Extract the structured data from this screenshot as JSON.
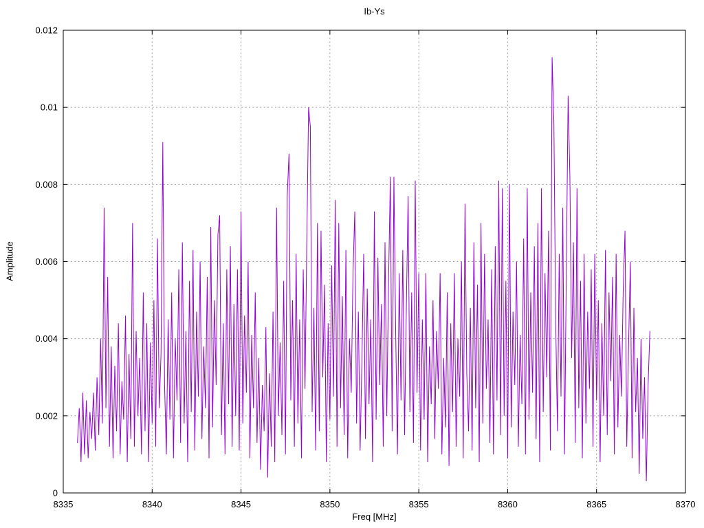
{
  "chart_data": {
    "type": "line",
    "title": "Ib-Ys",
    "xlabel": "Freq [MHz]",
    "ylabel": "Amplitude",
    "xlim": [
      8335,
      8370
    ],
    "ylim": [
      0,
      0.012
    ],
    "x_ticks": [
      8335,
      8340,
      8345,
      8350,
      8355,
      8360,
      8365,
      8370
    ],
    "x_tick_labels": [
      "8335",
      "8340",
      "8345",
      "8350",
      "8355",
      "8360",
      "8365",
      "8370"
    ],
    "y_ticks": [
      0,
      0.002,
      0.004,
      0.006,
      0.008,
      0.01,
      0.012
    ],
    "y_tick_labels": [
      "0",
      "0.002",
      "0.004",
      "0.006",
      "0.008",
      "0.01",
      "0.012"
    ],
    "grid": true,
    "legend": "none",
    "line_color": "#9400d3",
    "grid_color": "#9b9b9b",
    "border_color": "#000000",
    "notable_peaks": [
      {
        "x": 8337.3,
        "y": 0.0074
      },
      {
        "x": 8340.6,
        "y": 0.0091
      },
      {
        "x": 8347.7,
        "y": 0.0088
      },
      {
        "x": 8348.8,
        "y": 0.01
      },
      {
        "x": 8353.5,
        "y": 0.0082
      },
      {
        "x": 8354.8,
        "y": 0.0081
      },
      {
        "x": 8359.5,
        "y": 0.0081
      },
      {
        "x": 8362.5,
        "y": 0.0113
      },
      {
        "x": 8363.4,
        "y": 0.0103
      }
    ],
    "series": [
      {
        "name": "Ib-Ys",
        "x_start": 8335.8,
        "x_step": 0.1,
        "y_unit": 0.0001,
        "values": [
          13,
          22,
          8,
          26,
          10,
          24,
          9,
          21,
          14,
          26,
          11,
          30,
          15,
          40,
          18,
          74,
          22,
          56,
          12,
          38,
          9,
          33,
          16,
          44,
          10,
          29,
          19,
          46,
          8,
          36,
          14,
          70,
          12,
          42,
          20,
          35,
          10,
          52,
          16,
          44,
          8,
          39,
          18,
          50,
          12,
          66,
          22,
          36,
          91,
          28,
          10,
          45,
          19,
          52,
          9,
          40,
          24,
          58,
          13,
          65,
          18,
          42,
          8,
          55,
          21,
          63,
          11,
          47,
          25,
          60,
          14,
          38,
          22,
          56,
          9,
          69,
          17,
          50,
          28,
          67,
          72,
          15,
          44,
          10,
          58,
          23,
          64,
          12,
          49,
          20,
          58,
          11,
          73,
          18,
          46,
          26,
          60,
          9,
          41,
          22,
          52,
          13,
          35,
          6,
          28,
          16,
          43,
          4,
          31,
          12,
          47,
          8,
          74,
          20,
          39,
          15,
          55,
          10,
          77,
          88,
          24,
          50,
          12,
          62,
          18,
          45,
          9,
          58,
          27,
          65,
          100,
          95,
          21,
          48,
          11,
          70,
          16,
          68,
          30,
          54,
          8,
          44,
          19,
          59,
          25,
          76,
          12,
          70,
          22,
          51,
          15,
          63,
          9,
          40,
          26,
          57,
          73,
          18,
          47,
          11,
          34,
          62,
          14,
          53,
          23,
          45,
          8,
          73,
          19,
          61,
          28,
          49,
          12,
          65,
          20,
          55,
          82,
          16,
          82,
          42,
          10,
          57,
          24,
          63,
          15,
          48,
          77,
          21,
          52,
          13,
          81,
          26,
          57,
          11,
          45,
          19,
          57,
          8,
          38,
          23,
          50,
          14,
          42,
          27,
          57,
          10,
          35,
          17,
          52,
          7,
          44,
          21,
          57,
          12,
          40,
          25,
          60,
          9,
          75,
          31,
          16,
          48,
          11,
          65,
          22,
          54,
          8,
          70,
          18,
          62,
          27,
          45,
          13,
          58,
          10,
          64,
          24,
          81,
          15,
          79,
          20,
          55,
          9,
          80,
          17,
          47,
          28,
          60,
          12,
          41,
          23,
          66,
          10,
          79,
          19,
          52,
          26,
          64,
          14,
          70,
          8,
          79,
          21,
          57,
          30,
          68,
          11,
          113,
          96,
          45,
          16,
          62,
          25,
          74,
          10,
          58,
          103,
          82,
          35,
          65,
          13,
          79,
          22,
          55,
          9,
          62,
          18,
          47,
          27,
          58,
          12,
          62,
          24,
          50,
          8,
          44,
          20,
          63,
          15,
          52,
          29,
          56,
          10,
          62,
          17,
          41,
          25,
          53,
          68,
          12,
          38,
          60,
          9,
          48,
          21,
          35,
          5,
          40,
          14,
          30,
          3,
          28,
          42
        ]
      }
    ]
  }
}
